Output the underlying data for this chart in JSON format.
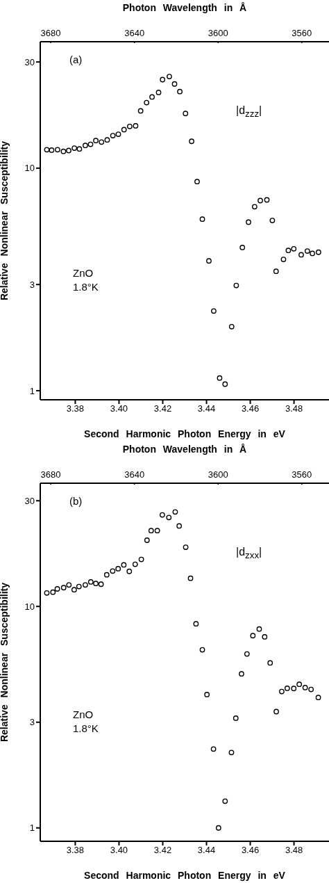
{
  "chart_data": [
    {
      "type": "scatter",
      "xlabel": "Second Harmonic Photon Energy in eV",
      "ylabel": "Relative Nonlinear Susceptibility",
      "x2label": "Photon Wavelength in Å",
      "log": "y",
      "marker": "circle",
      "xlim": [
        3.364,
        3.496
      ],
      "xticks": [
        3.38,
        {
          "value": 3.4,
          "label": "3.40"
        },
        3.42,
        3.44,
        3.46,
        3.48
      ],
      "x2lim": [
        3685,
        3547
      ],
      "x2ticks": [
        3680,
        3640,
        3600,
        3560
      ],
      "ylim": [
        0.91,
        37
      ],
      "yticks": [
        1,
        3,
        10,
        30
      ],
      "annotations": [
        "(a)",
        "|d$_{zzz}$|",
        "ZnO",
        "1.8°K"
      ],
      "x": [
        3.367,
        3.3692,
        3.3719,
        3.3746,
        3.377,
        3.3796,
        3.3819,
        3.3846,
        3.387,
        3.3894,
        3.392,
        3.3946,
        3.3972,
        3.3997,
        3.4023,
        3.4049,
        3.4076,
        3.4099,
        3.4126,
        3.4151,
        3.4181,
        3.4199,
        3.423,
        3.4254,
        3.4278,
        3.4304,
        3.4332,
        3.4357,
        3.4381,
        3.4411,
        3.4433,
        3.446,
        3.4485,
        3.4515,
        3.4536,
        3.4564,
        3.4592,
        3.462,
        3.4646,
        3.4676,
        3.4701,
        3.4718,
        3.4752,
        3.4774,
        3.4799,
        3.4833,
        3.4861,
        3.4884,
        3.4912
      ],
      "series": [
        {
          "color": "#000000",
          "values": [
            12.1,
            12.05,
            12.1,
            11.9,
            12.0,
            12.3,
            12.2,
            12.65,
            12.8,
            13.3,
            13.1,
            13.4,
            14.0,
            14.2,
            14.9,
            15.4,
            15.5,
            18.1,
            19.7,
            20.9,
            21.9,
            25.0,
            25.8,
            23.9,
            22.1,
            17.6,
            13.2,
            8.7,
            5.9,
            3.83,
            2.28,
            1.14,
            1.07,
            1.94,
            2.97,
            4.4,
            5.72,
            6.71,
            7.15,
            7.2,
            5.82,
            3.44,
            3.89,
            4.27,
            4.34,
            4.08,
            4.24,
            4.14,
            4.19
          ]
        }
      ]
    },
    {
      "type": "scatter",
      "xlabel": "Second Harmonic Photon Energy in eV",
      "ylabel": "Relative Nonlinear Susceptibility",
      "x2label": "Photon Wavelength in Å",
      "log": "y",
      "marker": "circle",
      "xlim": [
        3.364,
        3.496
      ],
      "xticks": [
        3.38,
        {
          "value": 3.4,
          "label": "3.40"
        },
        3.42,
        3.44,
        3.46,
        3.48
      ],
      "x2lim": [
        3685,
        3547
      ],
      "x2ticks": [
        3680,
        3640,
        3600,
        3560
      ],
      "ylim": [
        0.87,
        36
      ],
      "yticks": [
        1,
        3,
        10,
        30
      ],
      "annotations": [
        "(b)",
        "|d$_{zxx}$|",
        "ZnO",
        "1.8°K"
      ],
      "x": [
        3.367,
        3.3698,
        3.3718,
        3.3747,
        3.3771,
        3.3795,
        3.3817,
        3.3846,
        3.3871,
        3.3894,
        3.3918,
        3.3944,
        3.3971,
        3.3996,
        3.4022,
        3.4047,
        3.4074,
        3.4102,
        3.4128,
        3.4147,
        3.4175,
        3.4198,
        3.4228,
        3.4257,
        3.4275,
        3.4305,
        3.4327,
        3.4352,
        3.4381,
        3.4402,
        3.4432,
        3.4455,
        3.4485,
        3.4514,
        3.4534,
        3.456,
        3.4585,
        3.4612,
        3.4641,
        3.4666,
        3.4691,
        3.4719,
        3.4744,
        3.4769,
        3.4799,
        3.4824,
        3.4851,
        3.4878,
        3.4911
      ],
      "series": [
        {
          "color": "#000000",
          "values": [
            11.5,
            11.6,
            12.0,
            12.15,
            12.5,
            11.9,
            12.3,
            12.5,
            12.9,
            12.7,
            12.6,
            13.9,
            14.45,
            14.8,
            15.4,
            14.4,
            15.5,
            16.3,
            19.9,
            22.0,
            22.0,
            25.9,
            25.2,
            26.7,
            23.1,
            18.5,
            13.4,
            8.35,
            6.37,
            4.0,
            2.27,
            1.0,
            1.32,
            2.19,
            3.13,
            4.96,
            6.1,
            7.38,
            7.91,
            7.29,
            5.56,
            3.35,
            4.13,
            4.27,
            4.26,
            4.45,
            4.3,
            4.22,
            3.88
          ]
        }
      ]
    }
  ]
}
